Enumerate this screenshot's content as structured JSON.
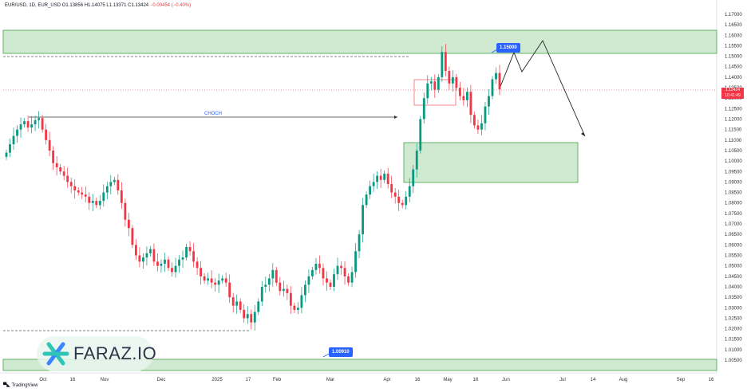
{
  "header": {
    "symbol": "EUR/USD, 1D, EUR_USD",
    "o": "O1.13856",
    "h": "H1.14075",
    "l": "L1.13371",
    "c": "C1.13424",
    "chg": "−0.00454 (−0.40%)"
  },
  "watermark": "TradingView",
  "brand": "FARAZ.IO",
  "colors": {
    "up": "#089981",
    "down": "#f23645",
    "zone": "#c8e6c9",
    "zone_stroke": "#43a047",
    "badge": "#2962ff",
    "grid": "#ffffff"
  },
  "price_tag": {
    "price": "1.13424",
    "time": "10:41:49"
  },
  "chart_data": {
    "type": "candlestick",
    "xlabels": [
      "Oct",
      "16",
      "Nov",
      "Dec",
      "2025",
      "17",
      "Feb",
      "Mar",
      "Apr",
      "16",
      "May",
      "16",
      "Jun",
      "Jul",
      "14",
      "Aug",
      "Sep",
      "16"
    ],
    "ylabels": [
      "1.17000",
      "1.16500",
      "1.16000",
      "1.15500",
      "1.15000",
      "1.14500",
      "1.14000",
      "1.13500",
      "1.13000",
      "1.12500",
      "1.12000",
      "1.11500",
      "1.11000",
      "1.10500",
      "1.10000",
      "1.09500",
      "1.09000",
      "1.08500",
      "1.08000",
      "1.07500",
      "1.07000",
      "1.06500",
      "1.06000",
      "1.05500",
      "1.05000",
      "1.04500",
      "1.04000",
      "1.03500",
      "1.03000",
      "1.02500",
      "1.02000",
      "1.01500",
      "1.01000",
      "1.00500"
    ],
    "ylim": [
      1.0035,
      1.1715
    ],
    "grid": false,
    "annotations": {
      "choch": "CHOCH",
      "level_high": "1.15000",
      "level_low": "1.00910"
    },
    "close_series": [
      1.104,
      1.108,
      1.112,
      1.115,
      1.1175,
      1.119,
      1.116,
      1.1175,
      1.1195,
      1.1205,
      1.115,
      1.11,
      1.105,
      1.099,
      1.097,
      1.095,
      1.093,
      1.09,
      1.088,
      1.086,
      1.085,
      1.084,
      1.083,
      1.08,
      1.081,
      1.079,
      1.081,
      1.085,
      1.088,
      1.09,
      1.091,
      1.086,
      1.08,
      1.072,
      1.068,
      1.06,
      1.055,
      1.052,
      1.054,
      1.056,
      1.058,
      1.052,
      1.05,
      1.051,
      1.053,
      1.049,
      1.047,
      1.05,
      1.053,
      1.054,
      1.059,
      1.057,
      1.052,
      1.049,
      1.045,
      1.043,
      1.044,
      1.042,
      1.041,
      1.043,
      1.044,
      1.042,
      1.035,
      1.031,
      1.033,
      1.029,
      1.025,
      1.027,
      1.023,
      1.028,
      1.033,
      1.04,
      1.041,
      1.044,
      1.048,
      1.042,
      1.038,
      1.039,
      1.037,
      1.031,
      1.029,
      1.03,
      1.036,
      1.041,
      1.045,
      1.048,
      1.051,
      1.049,
      1.044,
      1.042,
      1.04,
      1.046,
      1.05,
      1.049,
      1.045,
      1.042,
      1.047,
      1.057,
      1.065,
      1.079,
      1.084,
      1.088,
      1.09,
      1.093,
      1.091,
      1.094,
      1.089,
      1.085,
      1.083,
      1.08,
      1.079,
      1.083,
      1.088,
      1.096,
      1.105,
      1.12,
      1.13,
      1.137,
      1.138,
      1.134,
      1.14,
      1.152,
      1.143,
      1.137,
      1.14,
      1.135,
      1.131,
      1.129,
      1.133,
      1.122,
      1.117,
      1.115,
      1.118,
      1.126,
      1.131,
      1.139,
      1.142,
      1.1342
    ]
  }
}
